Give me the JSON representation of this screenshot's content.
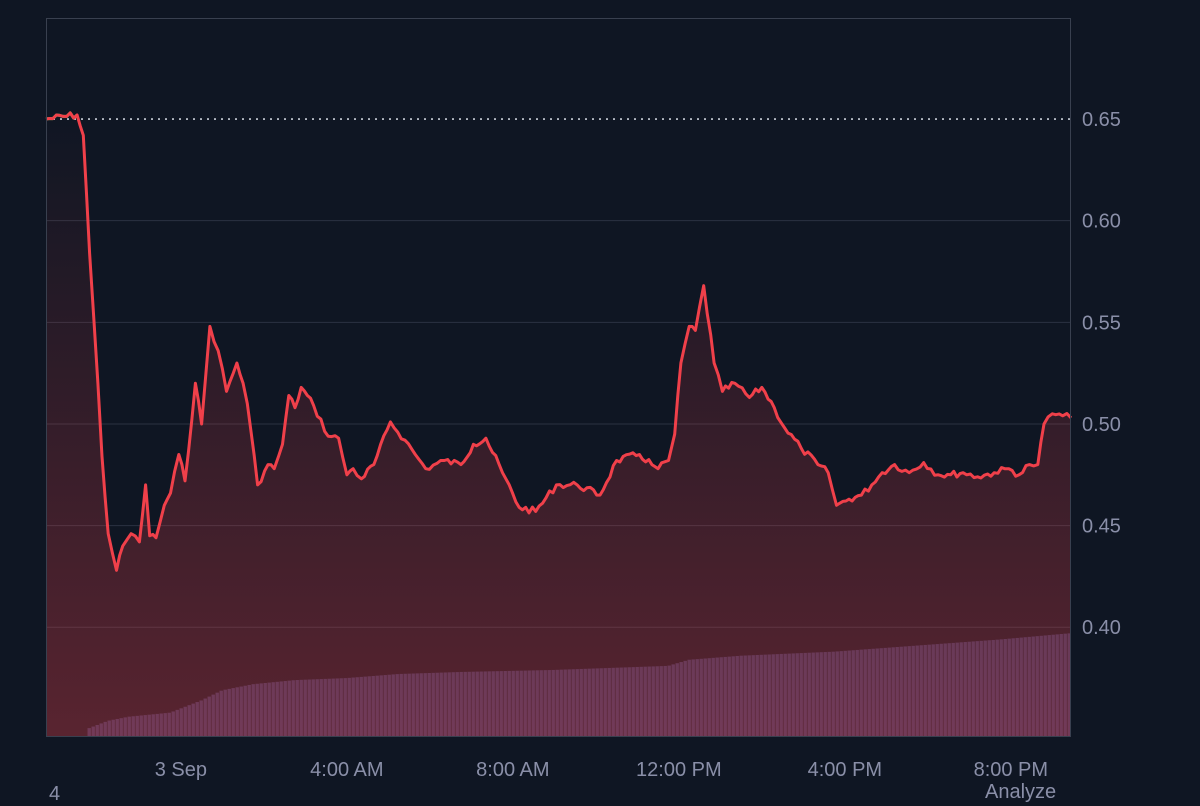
{
  "colors": {
    "background": "#0f1623",
    "plot_border": "#39404f",
    "grid": "#2b3242",
    "line_down": "#f0404a",
    "line_up": "#3ad45c",
    "reference_line": "#c9ced8",
    "volume": "#34375e",
    "tick_text": "#8a8fa8"
  },
  "footer": {
    "left_label": "4",
    "right_label": "Analyze"
  },
  "chart_data": {
    "type": "line",
    "title": "",
    "xlabel": "",
    "ylabel": "",
    "y_axis_position": "right",
    "ylim": [
      0.3465,
      0.6997
    ],
    "yticks": [
      0.4,
      0.45,
      0.5,
      0.55,
      0.6,
      0.65
    ],
    "ytick_labels": [
      "0.40",
      "0.45",
      "0.50",
      "0.55",
      "0.60",
      "0.65"
    ],
    "xlim": [
      -3.25,
      21.45
    ],
    "xticks": [
      0,
      4,
      8,
      12,
      16,
      20
    ],
    "xtick_labels": [
      "3 Sep",
      "4:00 AM",
      "8:00 AM",
      "12:00 PM",
      "4:00 PM",
      "8:00 PM"
    ],
    "reference_value": 0.65,
    "grid": true,
    "series": [
      {
        "type": "line",
        "x": [
          -3.25,
          -2.5,
          -2.35,
          -2.2,
          -2.0,
          -1.9,
          -1.75,
          -1.55,
          -1.4,
          -1.2,
          -1.0,
          -0.85,
          -0.75,
          -0.6,
          -0.4,
          -0.25,
          -0.05,
          0.1,
          0.35,
          0.5,
          0.7,
          0.9,
          1.1,
          1.35,
          1.5,
          1.6,
          1.85,
          2.1,
          2.25,
          2.45,
          2.6,
          2.75,
          2.9,
          3.2,
          3.55,
          3.8,
          4.0,
          4.15,
          4.35,
          4.65,
          5.05,
          5.4,
          5.65,
          5.9,
          6.35,
          6.75,
          7.05,
          7.35,
          7.75,
          8.15,
          8.55,
          9.05,
          9.55,
          10.1,
          10.5,
          11.05,
          11.35,
          11.5,
          11.75,
          11.9,
          12.05,
          12.25,
          12.4,
          12.6,
          12.85,
          13.05,
          13.35,
          13.7,
          14.0,
          14.3,
          14.55,
          14.95,
          15.35,
          15.6,
          15.8,
          16.1,
          16.4,
          16.65,
          16.9,
          17.2,
          17.55,
          17.9,
          18.25,
          18.55,
          18.85,
          19.2,
          19.6,
          19.95,
          20.2,
          20.45,
          20.65,
          20.8,
          21.0,
          21.25,
          21.45
        ],
        "values": [
          0.65,
          0.652,
          0.642,
          0.584,
          0.52,
          0.484,
          0.446,
          0.428,
          0.44,
          0.446,
          0.442,
          0.47,
          0.445,
          0.444,
          0.46,
          0.466,
          0.485,
          0.472,
          0.52,
          0.5,
          0.548,
          0.536,
          0.516,
          0.53,
          0.52,
          0.51,
          0.47,
          0.48,
          0.478,
          0.49,
          0.514,
          0.508,
          0.518,
          0.509,
          0.494,
          0.493,
          0.475,
          0.478,
          0.473,
          0.48,
          0.501,
          0.492,
          0.485,
          0.478,
          0.482,
          0.48,
          0.49,
          0.493,
          0.476,
          0.459,
          0.457,
          0.47,
          0.47,
          0.465,
          0.482,
          0.485,
          0.48,
          0.478,
          0.482,
          0.495,
          0.53,
          0.548,
          0.546,
          0.568,
          0.53,
          0.516,
          0.52,
          0.513,
          0.518,
          0.508,
          0.498,
          0.488,
          0.48,
          0.476,
          0.46,
          0.463,
          0.465,
          0.47,
          0.476,
          0.48,
          0.476,
          0.481,
          0.475,
          0.475,
          0.476,
          0.474,
          0.476,
          0.478,
          0.475,
          0.48,
          0.48,
          0.5,
          0.505,
          0.504,
          0.503
        ]
      },
      {
        "type": "bar",
        "name": "volume",
        "x": [
          -2.25,
          -1.75,
          -1.25,
          -0.25,
          0.5,
          1.0,
          1.75,
          2.75,
          4.0,
          5.25,
          6.75,
          9.0,
          11.75,
          12.25,
          13.5,
          15.75,
          17.75,
          19.75,
          21.4
        ],
        "values": [
          0.35,
          0.354,
          0.356,
          0.358,
          0.364,
          0.369,
          0.372,
          0.374,
          0.375,
          0.377,
          0.378,
          0.379,
          0.381,
          0.384,
          0.386,
          0.388,
          0.391,
          0.394,
          0.397
        ]
      }
    ]
  }
}
